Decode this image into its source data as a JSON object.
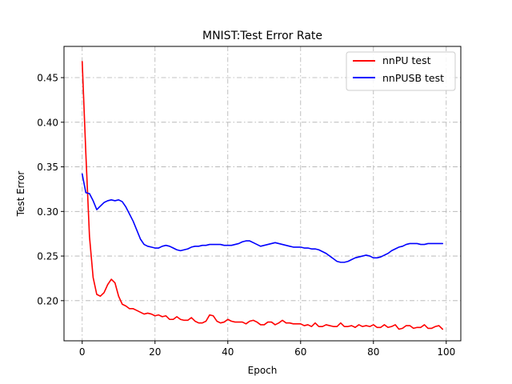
{
  "chart_data": {
    "type": "line",
    "title": "MNIST:Test Error Rate",
    "xlabel": "Epoch",
    "ylabel": "Test Error",
    "xlim": [
      -5,
      104
    ],
    "ylim": [
      0.155,
      0.485
    ],
    "xticks": [
      0,
      20,
      40,
      60,
      80,
      100
    ],
    "yticks": [
      0.2,
      0.25,
      0.3,
      0.35,
      0.4,
      0.45
    ],
    "ytick_labels": [
      "0.20",
      "0.25",
      "0.30",
      "0.35",
      "0.40",
      "0.45"
    ],
    "grid": true,
    "grid_style": "dash-dot",
    "legend_position": "top-right",
    "series": [
      {
        "name": "nnPU test",
        "color": "#ff0000",
        "x": [
          0,
          1,
          2,
          3,
          4,
          5,
          6,
          7,
          8,
          9,
          10,
          11,
          12,
          13,
          14,
          15,
          16,
          17,
          18,
          19,
          20,
          21,
          22,
          23,
          24,
          25,
          26,
          27,
          28,
          29,
          30,
          31,
          32,
          33,
          34,
          35,
          36,
          37,
          38,
          39,
          40,
          41,
          42,
          43,
          44,
          45,
          46,
          47,
          48,
          49,
          50,
          51,
          52,
          53,
          54,
          55,
          56,
          57,
          58,
          59,
          60,
          61,
          62,
          63,
          64,
          65,
          66,
          67,
          68,
          69,
          70,
          71,
          72,
          73,
          74,
          75,
          76,
          77,
          78,
          79,
          80,
          81,
          82,
          83,
          84,
          85,
          86,
          87,
          88,
          89,
          90,
          91,
          92,
          93,
          94,
          95,
          96,
          97,
          98,
          99
        ],
        "values": [
          0.468,
          0.365,
          0.272,
          0.226,
          0.207,
          0.205,
          0.209,
          0.218,
          0.224,
          0.22,
          0.205,
          0.196,
          0.194,
          0.191,
          0.191,
          0.189,
          0.187,
          0.185,
          0.186,
          0.185,
          0.183,
          0.184,
          0.182,
          0.183,
          0.179,
          0.179,
          0.182,
          0.179,
          0.178,
          0.178,
          0.181,
          0.177,
          0.175,
          0.175,
          0.177,
          0.184,
          0.183,
          0.177,
          0.175,
          0.176,
          0.179,
          0.177,
          0.176,
          0.176,
          0.176,
          0.174,
          0.177,
          0.178,
          0.176,
          0.173,
          0.173,
          0.176,
          0.176,
          0.173,
          0.175,
          0.178,
          0.175,
          0.175,
          0.174,
          0.174,
          0.174,
          0.172,
          0.173,
          0.171,
          0.175,
          0.171,
          0.171,
          0.173,
          0.172,
          0.171,
          0.171,
          0.175,
          0.171,
          0.171,
          0.172,
          0.17,
          0.173,
          0.171,
          0.172,
          0.171,
          0.173,
          0.17,
          0.17,
          0.173,
          0.17,
          0.171,
          0.173,
          0.168,
          0.169,
          0.172,
          0.172,
          0.169,
          0.17,
          0.17,
          0.173,
          0.169,
          0.169,
          0.171,
          0.172,
          0.168
        ]
      },
      {
        "name": "nnPUSB test",
        "color": "#0000ff",
        "x": [
          0,
          1,
          2,
          3,
          4,
          5,
          6,
          7,
          8,
          9,
          10,
          11,
          12,
          13,
          14,
          15,
          16,
          17,
          18,
          19,
          20,
          21,
          22,
          23,
          24,
          25,
          26,
          27,
          28,
          29,
          30,
          31,
          32,
          33,
          34,
          35,
          36,
          37,
          38,
          39,
          40,
          41,
          42,
          43,
          44,
          45,
          46,
          47,
          48,
          49,
          50,
          51,
          52,
          53,
          54,
          55,
          56,
          57,
          58,
          59,
          60,
          61,
          62,
          63,
          64,
          65,
          66,
          67,
          68,
          69,
          70,
          71,
          72,
          73,
          74,
          75,
          76,
          77,
          78,
          79,
          80,
          81,
          82,
          83,
          84,
          85,
          86,
          87,
          88,
          89,
          90,
          91,
          92,
          93,
          94,
          95,
          96,
          97,
          98,
          99
        ],
        "values": [
          0.342,
          0.321,
          0.32,
          0.312,
          0.302,
          0.306,
          0.31,
          0.312,
          0.313,
          0.312,
          0.313,
          0.311,
          0.305,
          0.297,
          0.289,
          0.279,
          0.269,
          0.263,
          0.261,
          0.26,
          0.259,
          0.259,
          0.261,
          0.262,
          0.261,
          0.259,
          0.257,
          0.256,
          0.257,
          0.258,
          0.26,
          0.261,
          0.261,
          0.262,
          0.262,
          0.263,
          0.263,
          0.263,
          0.263,
          0.262,
          0.262,
          0.262,
          0.263,
          0.264,
          0.266,
          0.267,
          0.267,
          0.265,
          0.263,
          0.261,
          0.262,
          0.263,
          0.264,
          0.265,
          0.264,
          0.263,
          0.262,
          0.261,
          0.26,
          0.26,
          0.26,
          0.259,
          0.259,
          0.258,
          0.258,
          0.257,
          0.255,
          0.253,
          0.25,
          0.247,
          0.244,
          0.243,
          0.243,
          0.244,
          0.246,
          0.248,
          0.249,
          0.25,
          0.251,
          0.25,
          0.248,
          0.248,
          0.249,
          0.251,
          0.253,
          0.256,
          0.258,
          0.26,
          0.261,
          0.263,
          0.264,
          0.264,
          0.264,
          0.263,
          0.263,
          0.264,
          0.264,
          0.264,
          0.264,
          0.264
        ]
      }
    ]
  }
}
